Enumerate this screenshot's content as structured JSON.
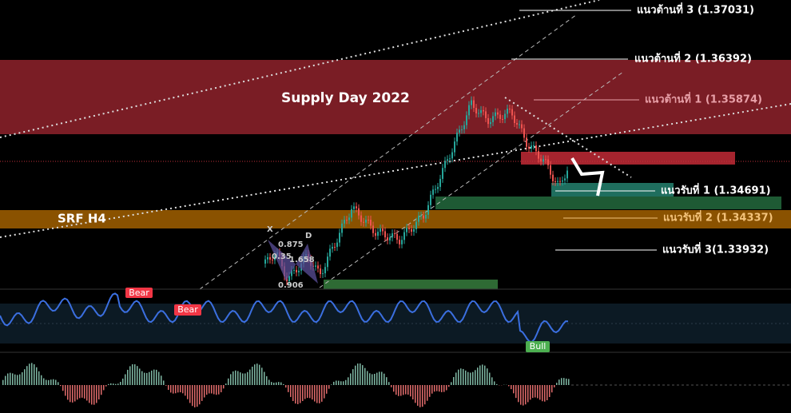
{
  "zones": {
    "supply": "Supply Day  2022",
    "srf": "SRF H4"
  },
  "resistance": [
    "แนวต้านที่ 3 (1.37031)",
    "แนวต้านที่ 2 (1.36392)",
    "แนวต้านที่ 1 (1.35874)"
  ],
  "support": [
    "แนวรับที่ 1 (1.34691)",
    "แนวรับที่ 2 (1.34337)",
    "แนวรับที่ 3(1.33932)"
  ],
  "pattern": {
    "x": "X",
    "d": "D",
    "r1": "0.875",
    "r2": "0.35",
    "r3": "1.658",
    "r4": "0.906"
  },
  "signals": [
    "Bear",
    "Bear",
    "Bull"
  ]
}
